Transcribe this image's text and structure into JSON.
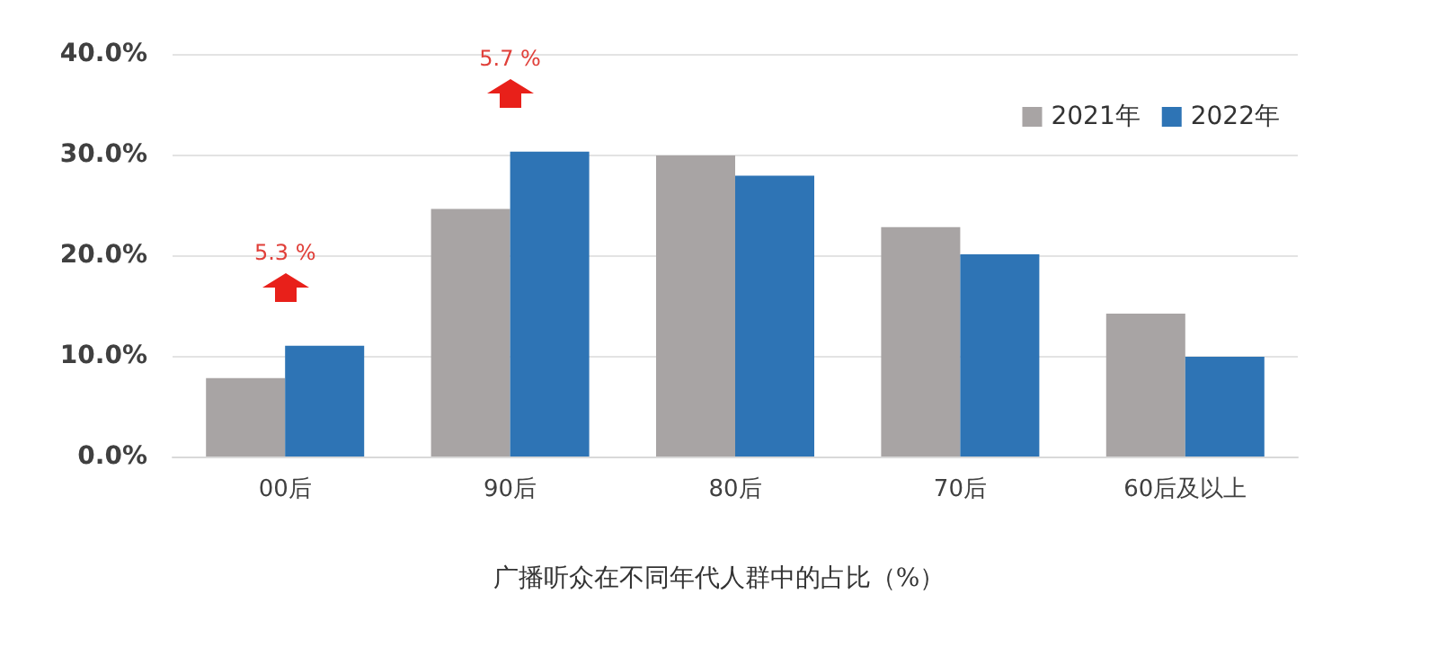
{
  "chart_data": {
    "type": "bar",
    "title": "广播听众在不同年代人群中的占比（%）",
    "categories": [
      "00后",
      "90后",
      "80后",
      "70后",
      "60后及以上"
    ],
    "series": [
      {
        "name": "2021年",
        "color": "#a8a4a4",
        "values": [
          7.8,
          24.6,
          29.9,
          22.8,
          14.2
        ]
      },
      {
        "name": "2022年",
        "color": "#2e74b5",
        "values": [
          11.0,
          30.3,
          27.9,
          20.1,
          9.9
        ]
      }
    ],
    "ylim": [
      0,
      40
    ],
    "yticks": [
      {
        "value": 0,
        "label": "0.0%"
      },
      {
        "value": 10,
        "label": "10.0%"
      },
      {
        "value": 20,
        "label": "20.0%"
      },
      {
        "value": 30,
        "label": "30.0%"
      },
      {
        "value": 40,
        "label": "40.0%"
      }
    ],
    "annotations": [
      "5.3 %",
      "5.7 %"
    ],
    "grid": "y",
    "legend": "top right"
  }
}
